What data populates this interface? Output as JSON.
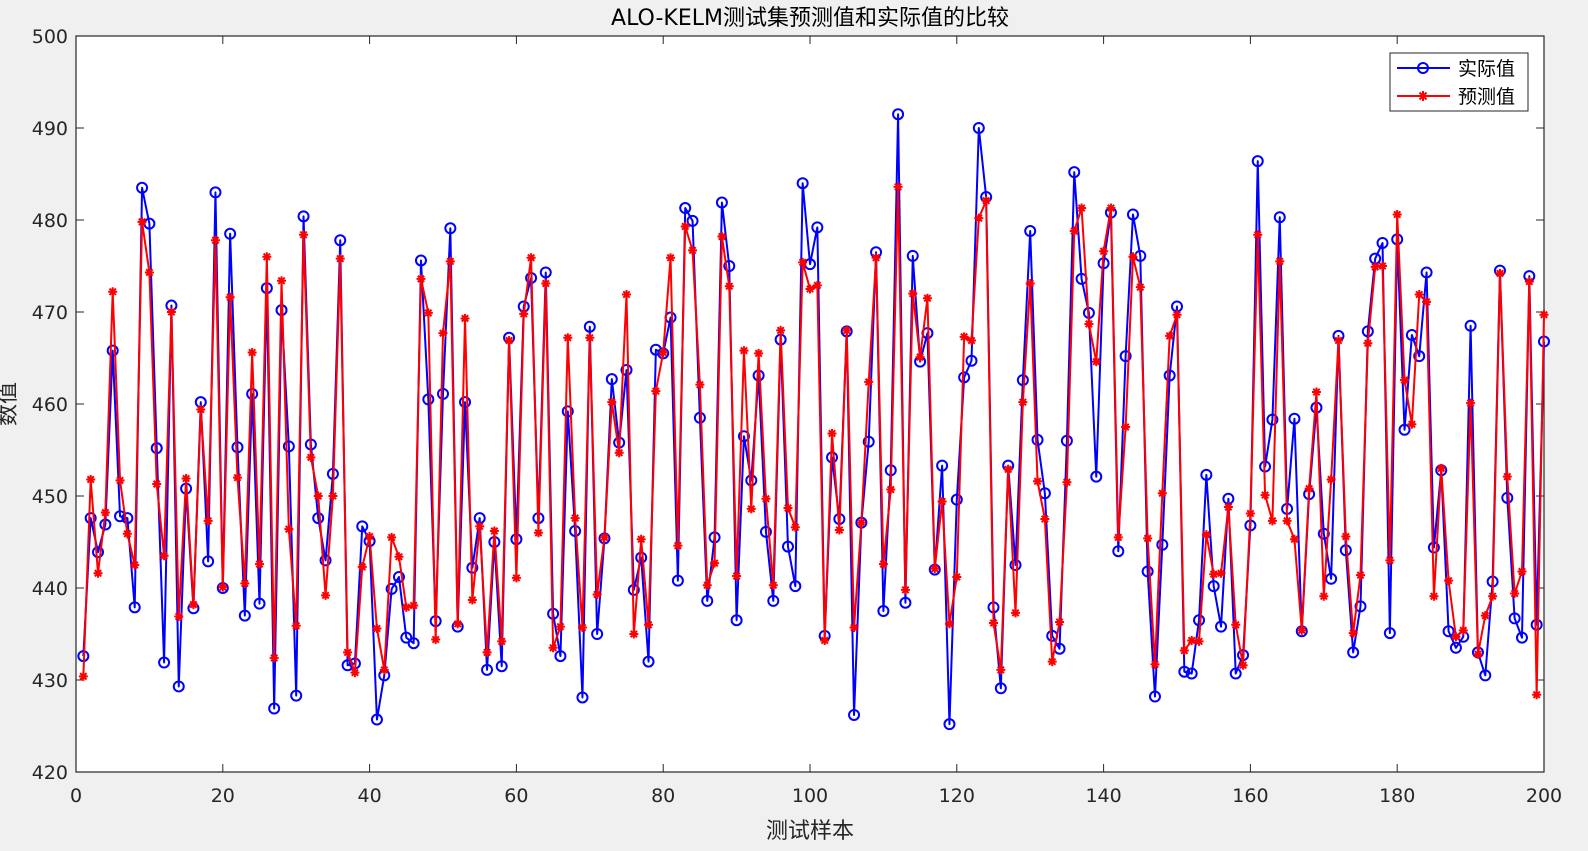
{
  "chart_data": {
    "type": "line",
    "title": "ALO-KELM测试集预测值和实际值的比较",
    "xlabel": "测试样本",
    "ylabel": "数值",
    "xlim": [
      0,
      200
    ],
    "ylim": [
      420,
      500
    ],
    "xticks": [
      0,
      20,
      40,
      60,
      80,
      100,
      120,
      140,
      160,
      180,
      200
    ],
    "yticks": [
      420,
      430,
      440,
      450,
      460,
      470,
      480,
      490,
      500
    ],
    "grid": false,
    "legend_position": "top-right",
    "series": [
      {
        "name": "实际值",
        "color": "#0000ff",
        "marker": "circle",
        "values": [
          432.6,
          447.6,
          443.9,
          446.9,
          465.8,
          447.8,
          447.6,
          437.9,
          483.5,
          479.6,
          455.2,
          431.9,
          470.7,
          429.3,
          450.8,
          437.8,
          460.2,
          442.9,
          483.0,
          440.0,
          478.5,
          455.3,
          437.0,
          461.1,
          438.3,
          472.6,
          426.9,
          470.2,
          455.4,
          428.3,
          480.4,
          455.6,
          447.6,
          443.0,
          452.4,
          477.8,
          431.6,
          431.8,
          446.7,
          445.1,
          425.7,
          430.5,
          439.9,
          441.2,
          434.6,
          434.0,
          475.6,
          460.5,
          436.4,
          461.1,
          479.1,
          435.8,
          460.2,
          442.2,
          447.6,
          431.1,
          445.0,
          431.5,
          467.2,
          445.3,
          470.6,
          473.7,
          447.6,
          474.3,
          437.2,
          432.6,
          459.2,
          446.2,
          428.1,
          468.4,
          435.0,
          445.4,
          462.7,
          455.8,
          463.7,
          439.8,
          443.3,
          432.0,
          465.9,
          465.5,
          469.4,
          440.8,
          481.3,
          479.9,
          458.5,
          438.6,
          445.5,
          481.9,
          475.0,
          436.5,
          456.5,
          451.7,
          463.1,
          446.1,
          438.6,
          467.0,
          444.5,
          440.2,
          484.0,
          475.2,
          479.2,
          434.8,
          454.2,
          447.5,
          467.9,
          426.2,
          447.1,
          455.9,
          476.5,
          437.5,
          452.8,
          491.5,
          438.4,
          476.1,
          464.6,
          467.7,
          442.0,
          453.3,
          425.2,
          449.6,
          462.9,
          464.7,
          490.0,
          482.5,
          437.9,
          429.1,
          453.3,
          442.5,
          462.6,
          478.8,
          456.1,
          450.3,
          434.8,
          433.4,
          456.0,
          485.2,
          473.6,
          469.9,
          452.1,
          475.3,
          480.8,
          444.0,
          465.2,
          480.6,
          476.1,
          441.8,
          428.2,
          444.7,
          463.1,
          470.6,
          430.9,
          430.7,
          436.5,
          452.3,
          440.2,
          435.8,
          449.7,
          430.7,
          432.7,
          446.8,
          486.4,
          453.2,
          458.3,
          480.3,
          448.6,
          458.4,
          435.3,
          450.2,
          459.6,
          445.9,
          441.0,
          467.4,
          444.1,
          433.0,
          438.0,
          467.9,
          475.8,
          477.5,
          435.1,
          477.9,
          457.2,
          467.5,
          465.2,
          474.3,
          444.4,
          452.8,
          435.3,
          433.5,
          434.7,
          468.5,
          433.0,
          430.5,
          440.7,
          474.5,
          449.8,
          436.7,
          434.6,
          473.9,
          436.0,
          466.8
        ]
      },
      {
        "name": "预测值",
        "color": "#ff0000",
        "marker": "star",
        "values": [
          430.4,
          451.8,
          441.6,
          448.2,
          472.2,
          451.7,
          445.9,
          442.5,
          479.8,
          474.3,
          451.3,
          443.5,
          470.0,
          436.9,
          451.9,
          438.2,
          459.4,
          447.3,
          477.8,
          440.1,
          471.6,
          452.0,
          440.5,
          465.6,
          442.6,
          476.0,
          432.4,
          473.4,
          446.4,
          435.9,
          478.4,
          454.2,
          450.0,
          439.2,
          450.0,
          475.8,
          433.0,
          430.8,
          442.3,
          445.6,
          435.6,
          431.1,
          445.5,
          443.4,
          437.9,
          438.1,
          473.6,
          469.9,
          434.4,
          467.7,
          475.5,
          436.1,
          469.3,
          438.7,
          446.7,
          433.0,
          446.2,
          434.2,
          466.9,
          441.1,
          469.8,
          475.9,
          446.0,
          473.1,
          433.5,
          435.8,
          467.2,
          447.6,
          435.7,
          467.2,
          439.3,
          445.5,
          460.2,
          454.7,
          471.9,
          435.0,
          445.3,
          436.0,
          461.4,
          465.6,
          475.9,
          444.6,
          479.3,
          476.7,
          462.1,
          440.3,
          442.7,
          478.2,
          472.8,
          441.3,
          465.8,
          448.6,
          465.5,
          449.7,
          440.3,
          468.0,
          448.7,
          446.6,
          475.4,
          472.5,
          472.9,
          434.3,
          456.8,
          446.3,
          468.0,
          435.7,
          447.1,
          462.4,
          475.9,
          442.6,
          450.7,
          483.6,
          439.8,
          472.0,
          465.1,
          471.5,
          442.1,
          449.4,
          436.1,
          441.2,
          467.3,
          466.9,
          480.2,
          482.1,
          436.2,
          431.1,
          452.9,
          437.3,
          460.2,
          473.1,
          451.6,
          447.5,
          432.0,
          436.3,
          451.5,
          478.8,
          481.3,
          468.7,
          464.6,
          476.6,
          481.3,
          445.5,
          457.5,
          476.0,
          472.7,
          445.4,
          431.7,
          450.3,
          467.4,
          469.7,
          433.2,
          434.3,
          434.2,
          445.8,
          441.5,
          441.6,
          448.8,
          436.0,
          431.6,
          448.1,
          478.4,
          450.1,
          447.3,
          475.5,
          447.3,
          445.3,
          435.4,
          450.8,
          461.3,
          439.1,
          451.8,
          466.9,
          445.6,
          435.1,
          441.4,
          466.6,
          474.9,
          475.0,
          443.0,
          480.6,
          462.6,
          457.8,
          471.9,
          471.1,
          439.1,
          453.0,
          440.8,
          434.7,
          435.4,
          460.1,
          432.8,
          437.0,
          439.1,
          474.2,
          452.1,
          439.4,
          441.8,
          473.3,
          428.4,
          469.7
        ]
      }
    ]
  }
}
